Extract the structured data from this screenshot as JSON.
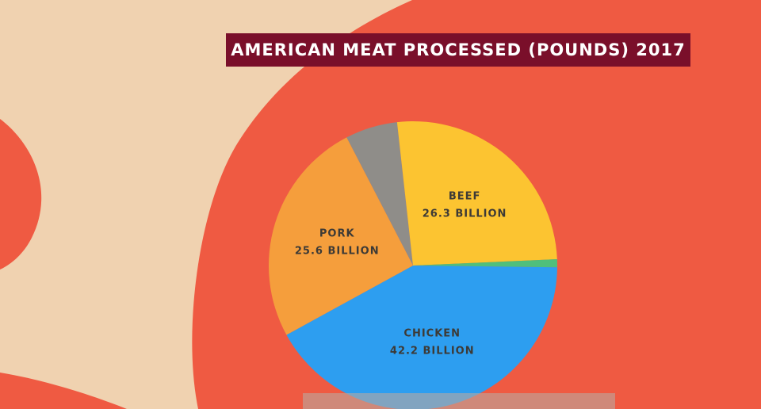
{
  "chart_data": {
    "type": "pie",
    "title": "AMERICAN MEAT PROCESSED (POUNDS) 2017",
    "categories": [
      null,
      "BEEF",
      null,
      "CHICKEN",
      "PORK"
    ],
    "values": [
      5.9,
      26.3,
      0.9,
      42.2,
      25.6
    ],
    "value_labels": [
      null,
      "26.3 BILLION",
      null,
      "42.2 BILLION",
      "25.6 BILLION"
    ],
    "colors": [
      "#8f8d89",
      "#fcc431",
      "#4fbf7c",
      "#2d9ef0",
      "#f59e3c"
    ]
  }
}
